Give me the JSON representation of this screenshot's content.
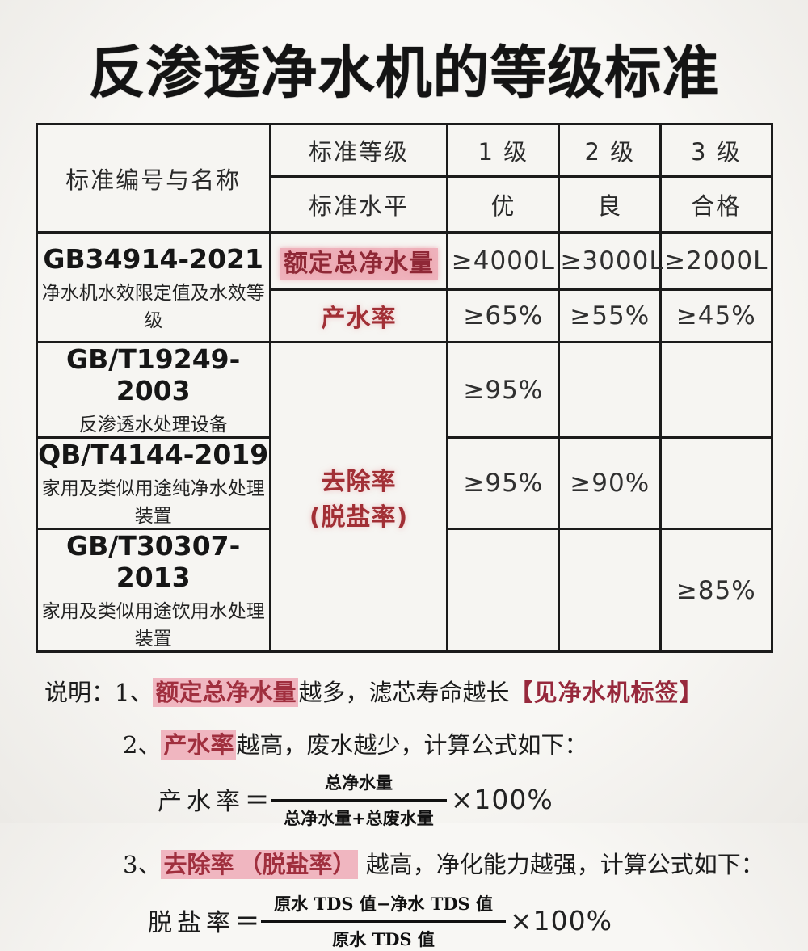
{
  "title": "反渗透净水机的等级标准",
  "colors": {
    "red_text": "#a12f35",
    "dark_red_text": "#8f2836",
    "pink_highlight": "#efb2bc",
    "border": "#1b1b1b",
    "background": "#f5f4f1"
  },
  "table": {
    "corner": "标准编号与名称",
    "grade_label": "标准等级",
    "grades": [
      "1 级",
      "2 级",
      "3 级"
    ],
    "level_label": "标准水平",
    "levels": [
      "优",
      "良",
      "合格"
    ],
    "rows": {
      "gb34914": {
        "code": "GB34914-2021",
        "name": "净水机水效限定值及水效等级"
      },
      "rated_flow": {
        "label": "额定总净水量",
        "values": [
          "≥4000L",
          "≥3000L",
          "≥2000L"
        ]
      },
      "water_rate": {
        "label": "产水率",
        "values": [
          "≥65%",
          "≥55%",
          "≥45%"
        ]
      },
      "removal": {
        "line1": "去除率",
        "line2": "(脱盐率)"
      },
      "gbt19249": {
        "code": "GB/T19249-2003",
        "name": "反渗透水处理设备",
        "v1": "≥95%",
        "v2": "",
        "v3": ""
      },
      "qbt4144": {
        "code": "QB/T4144-2019",
        "name": "家用及类似用途纯净水处理装置",
        "v1": "≥95%",
        "v2": "≥90%",
        "v3": ""
      },
      "gbt30307": {
        "code": "GB/T30307-2013",
        "name": "家用及类似用途饮用水处理装置",
        "v1": "",
        "v2": "",
        "v3": "≥85%"
      }
    }
  },
  "notes": {
    "prefix": "说明：",
    "note1": {
      "num": "1、",
      "hl": "额定总净水量",
      "rest": "越多，滤芯寿命越长",
      "bracket": "【见净水机标签】"
    },
    "note2": {
      "num": "2、",
      "hl": "产水率",
      "rest": "越高，废水越少，计算公式如下："
    },
    "formula1": {
      "lhs": "产水率",
      "eq": "=",
      "numerator": "总净水量",
      "denominator": "总净水量+总废水量",
      "suffix": "×100%"
    },
    "note3": {
      "num": "3、",
      "hl": "去除率",
      "hl2": "（脱盐率）",
      "rest": " 越高，净化能力越强，计算公式如下："
    },
    "formula2": {
      "lhs": "脱盐率",
      "eq": "=",
      "numerator": "原水 TDS 值−净水 TDS 值",
      "denominator": "原水 TDS 值",
      "suffix": "×100%"
    }
  }
}
